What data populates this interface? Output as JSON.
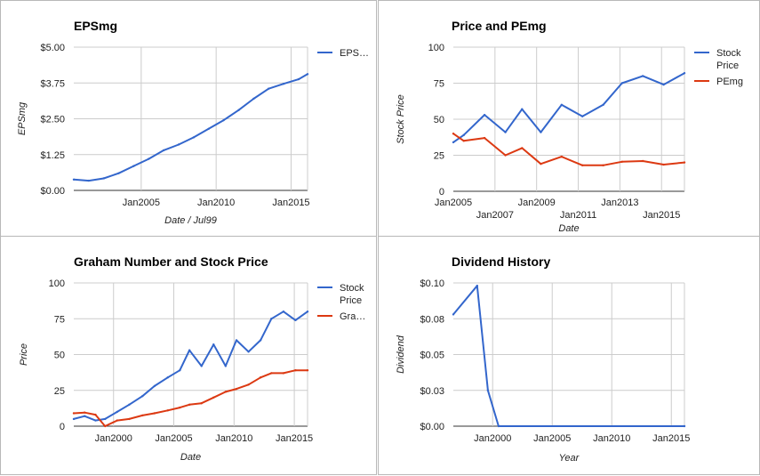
{
  "chart_data": [
    {
      "type": "line",
      "title": "EPSmg",
      "xlabel": "Date / Jul99",
      "ylabel": "EPSmg",
      "xlim": [
        2000.5,
        2016.1
      ],
      "ylim": [
        0,
        5
      ],
      "yticks": [
        "$0.00",
        "$1.25",
        "$2.50",
        "$3.75",
        "$5.00"
      ],
      "xticks": [
        "Jan2005",
        "Jan2010",
        "Jan2015"
      ],
      "grid": true,
      "legend_position": "right",
      "series": [
        {
          "name": "EPS…",
          "color": "#3366cc",
          "x": [
            2000.5,
            2001.5,
            2002.5,
            2003.5,
            2004.5,
            2005.5,
            2006.5,
            2007.5,
            2008.5,
            2009.5,
            2010.5,
            2011.5,
            2012.5,
            2013.5,
            2014.5,
            2015.5,
            2016.1
          ],
          "values": [
            0.38,
            0.34,
            0.42,
            0.6,
            0.85,
            1.1,
            1.4,
            1.6,
            1.85,
            2.15,
            2.45,
            2.8,
            3.2,
            3.55,
            3.72,
            3.88,
            4.06
          ]
        }
      ]
    },
    {
      "type": "line",
      "title": "Price and PEmg",
      "xlabel": "Date",
      "ylabel": "Stock Price",
      "xlim": [
        2005,
        2016.1
      ],
      "ylim": [
        0,
        100
      ],
      "yticks": [
        "0",
        "25",
        "50",
        "75",
        "100"
      ],
      "xticks": [
        "Jan2005",
        "Jan2007",
        "Jan2009",
        "Jan2011",
        "Jan2013",
        "Jan2015"
      ],
      "grid": true,
      "legend_position": "right",
      "series": [
        {
          "name": "Stock Price",
          "color": "#3366cc",
          "x": [
            2005,
            2005.5,
            2006.5,
            2007.5,
            2008.3,
            2009.2,
            2010.2,
            2011.2,
            2012.2,
            2013.1,
            2014.1,
            2015.1,
            2016.1
          ],
          "values": [
            34,
            39,
            53,
            41,
            57,
            41,
            60,
            52,
            60,
            75,
            80,
            74,
            82
          ]
        },
        {
          "name": "PEmg",
          "color": "#dc3912",
          "x": [
            2005,
            2005.5,
            2006.5,
            2007.5,
            2008.3,
            2009.2,
            2010.2,
            2011.2,
            2012.2,
            2013.1,
            2014.1,
            2015.1,
            2016.1
          ],
          "values": [
            40,
            35,
            37,
            25,
            30,
            19,
            24,
            18,
            18,
            20.5,
            21,
            18.5,
            20
          ]
        }
      ]
    },
    {
      "type": "line",
      "title": "Graham Number and Stock Price",
      "xlabel": "Date",
      "ylabel": "Price",
      "xlim": [
        1996.7,
        2016.1
      ],
      "ylim": [
        0,
        100
      ],
      "yticks": [
        "0",
        "25",
        "50",
        "75",
        "100"
      ],
      "xticks": [
        "Jan2000",
        "Jan2005",
        "Jan2010",
        "Jan2015"
      ],
      "grid": true,
      "legend_position": "right",
      "series": [
        {
          "name": "Stock Price",
          "color": "#3366cc",
          "x": [
            1996.7,
            1997.6,
            1998.5,
            1999.3,
            2000.3,
            2001.3,
            2002.4,
            2003.4,
            2004.5,
            2005.5,
            2006.3,
            2007.3,
            2008.3,
            2009.3,
            2010.2,
            2011.2,
            2012.2,
            2013.1,
            2014.1,
            2015.1,
            2016.1
          ],
          "values": [
            5,
            7,
            4,
            5,
            10,
            15,
            21,
            28,
            34,
            39,
            53,
            42,
            57,
            42,
            60,
            52,
            60,
            75,
            80,
            74,
            80
          ]
        },
        {
          "name": "Gra…",
          "color": "#dc3912",
          "x": [
            1996.7,
            1997.6,
            1998.5,
            1999.3,
            2000.3,
            2001.3,
            2002.4,
            2003.4,
            2004.5,
            2005.5,
            2006.3,
            2007.3,
            2008.3,
            2009.3,
            2010.2,
            2011.2,
            2012.2,
            2013.1,
            2014.1,
            2015.1,
            2016.1
          ],
          "values": [
            9,
            9.5,
            8,
            0,
            4,
            5,
            7.5,
            9,
            11,
            13,
            15,
            16,
            20,
            24,
            26,
            29,
            34,
            37,
            37,
            39,
            39
          ]
        }
      ]
    },
    {
      "type": "line",
      "title": "Dividend History",
      "xlabel": "Year",
      "ylabel": "Dividend",
      "xlim": [
        1996.7,
        2016.1
      ],
      "ylim": [
        0,
        0.1
      ],
      "yticks": [
        "$0.00",
        "$0.03",
        "$0.05",
        "$0.08",
        "$0.10"
      ],
      "xticks": [
        "Jan2000",
        "Jan2005",
        "Jan2010",
        "Jan2015"
      ],
      "grid": true,
      "series": [
        {
          "name": "",
          "color": "#3366cc",
          "x": [
            1996.7,
            1998.7,
            1999.6,
            2000.5,
            2016.1
          ],
          "values": [
            0.078,
            0.098,
            0.025,
            0,
            0
          ]
        }
      ]
    }
  ]
}
